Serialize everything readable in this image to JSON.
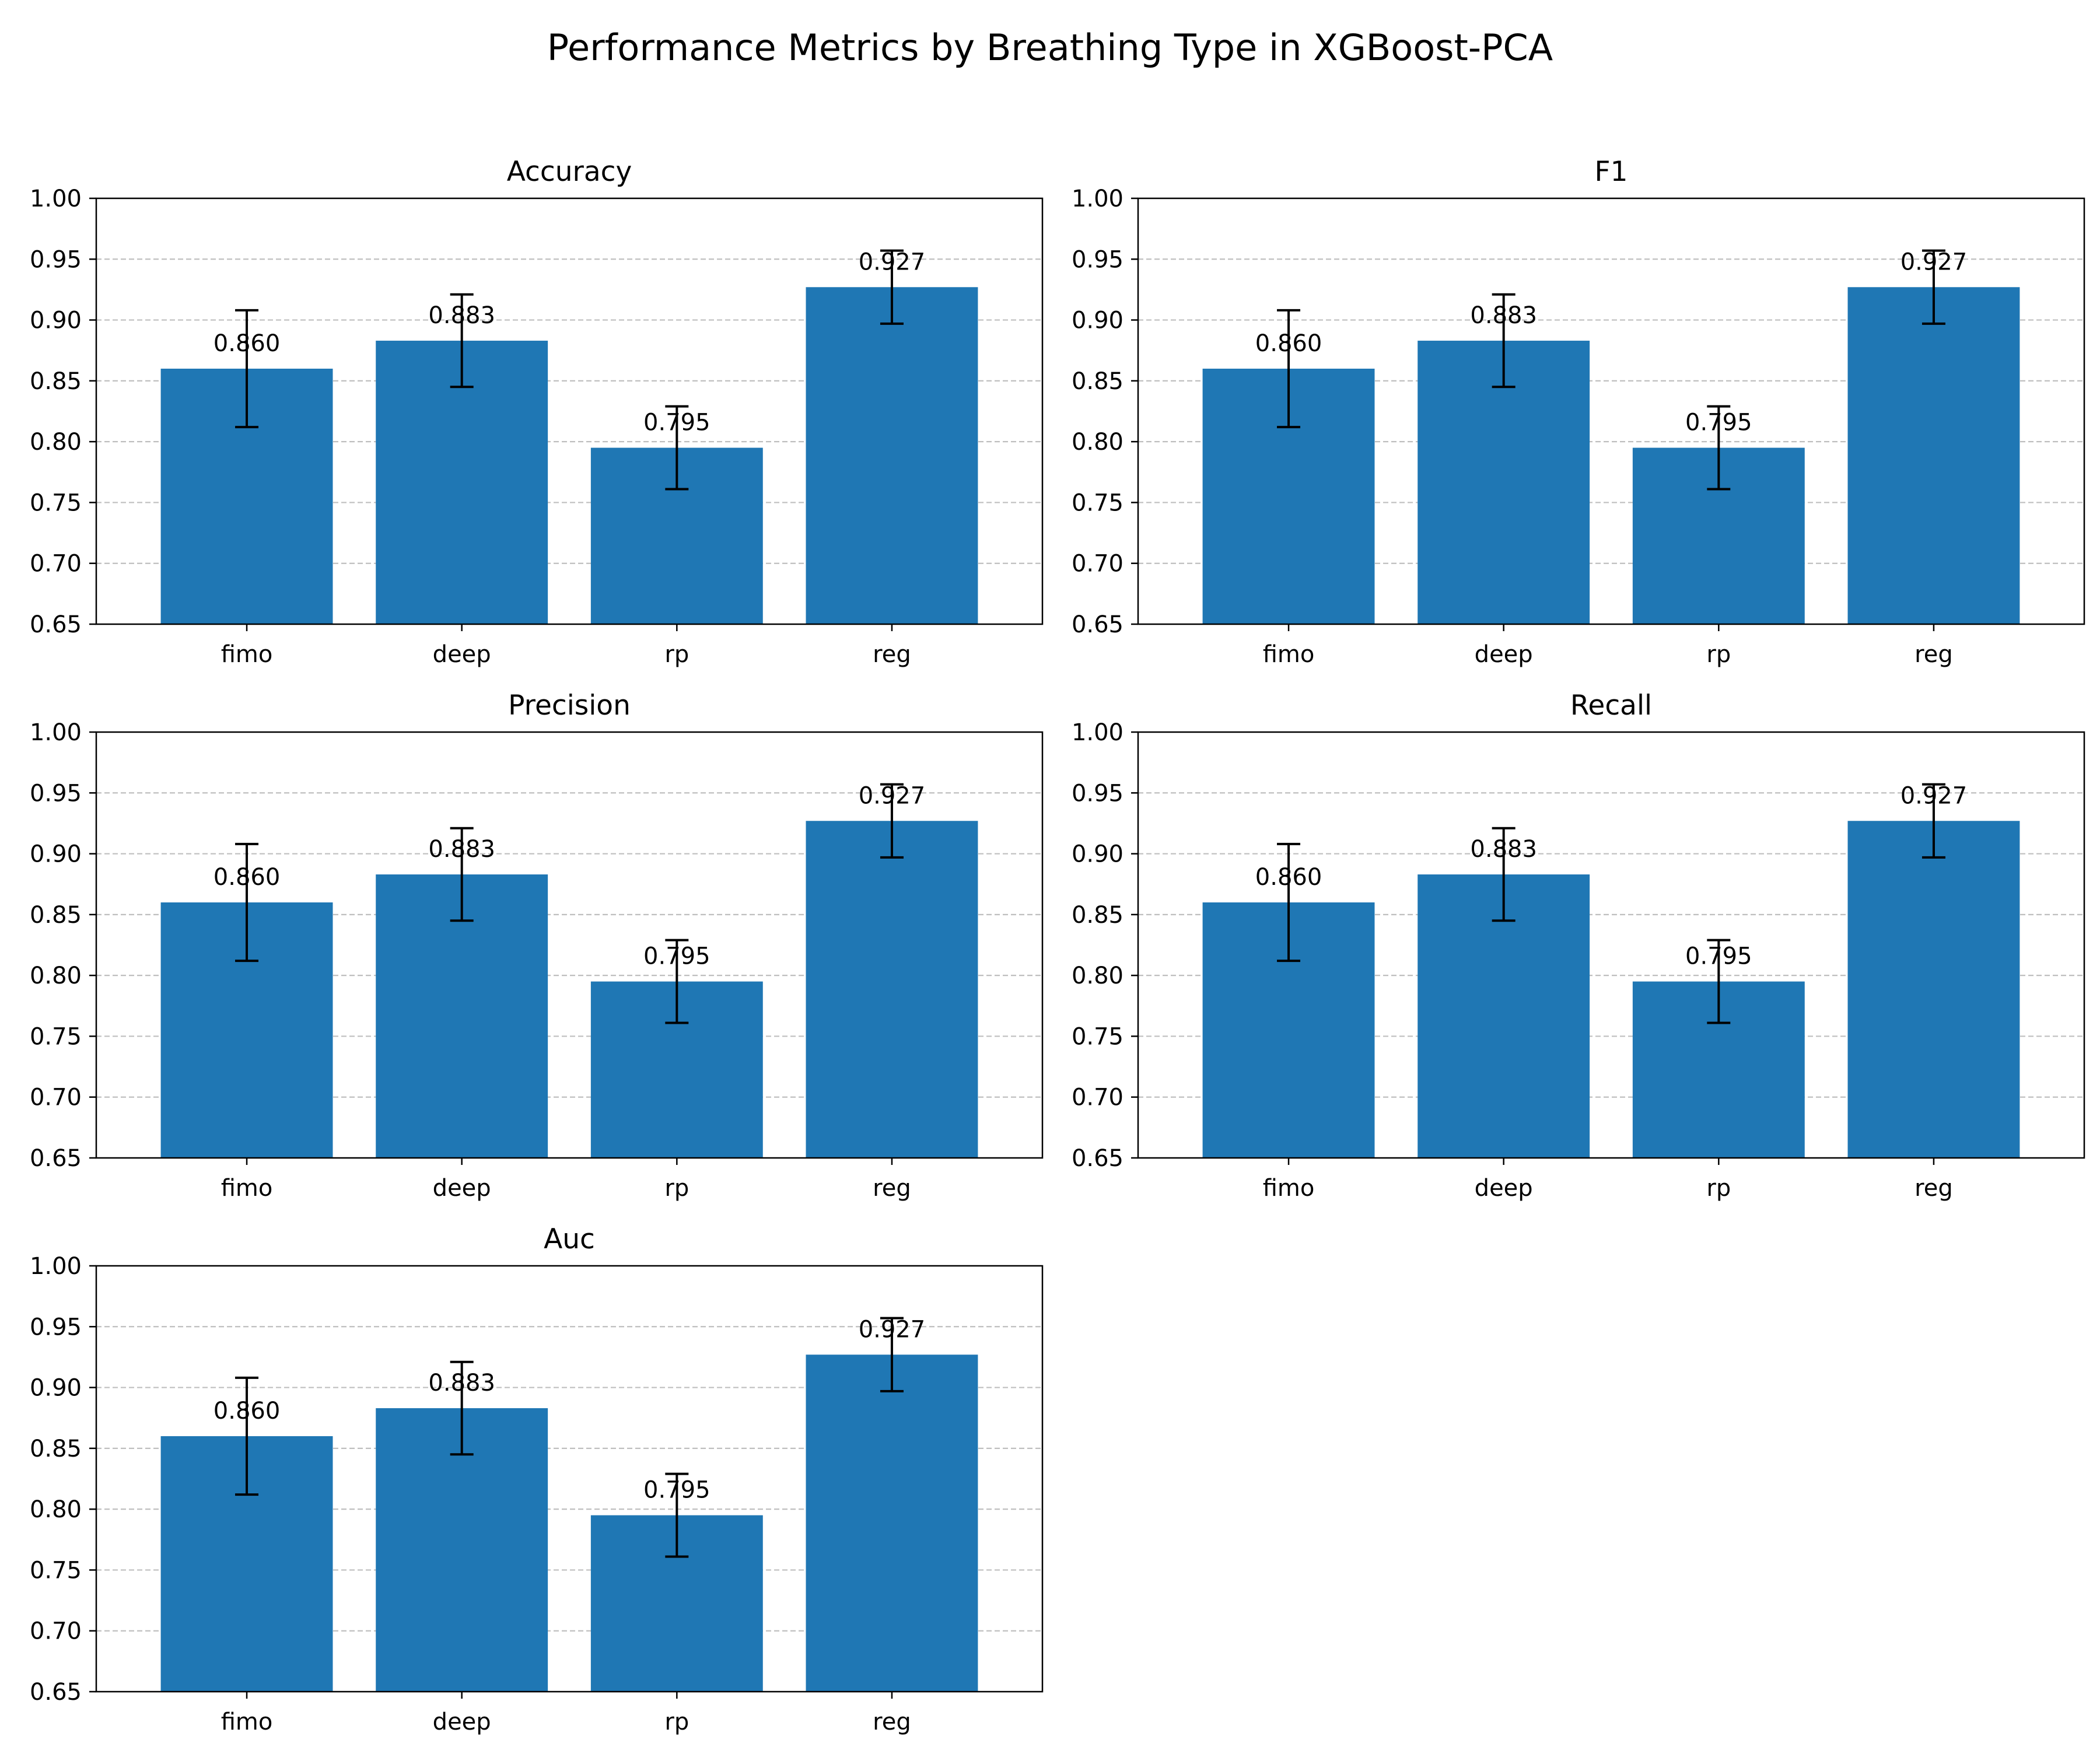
{
  "figure_title": "Performance Metrics by Breathing Type in XGBoost-PCA",
  "chart_data": [
    {
      "type": "bar",
      "title": "Accuracy",
      "categories": [
        "fimo",
        "deep",
        "rp",
        "reg"
      ],
      "values": [
        0.86,
        0.883,
        0.795,
        0.927
      ],
      "errors": [
        0.048,
        0.038,
        0.034,
        0.03
      ],
      "value_labels": [
        "0.860",
        "0.883",
        "0.795",
        "0.927"
      ],
      "ylim": [
        0.65,
        1.0
      ],
      "yticks": [
        "0.65",
        "0.70",
        "0.75",
        "0.80",
        "0.85",
        "0.90",
        "0.95",
        "1.00"
      ],
      "grid": "y-dashed"
    },
    {
      "type": "bar",
      "title": "F1",
      "categories": [
        "fimo",
        "deep",
        "rp",
        "reg"
      ],
      "values": [
        0.86,
        0.883,
        0.795,
        0.927
      ],
      "errors": [
        0.048,
        0.038,
        0.034,
        0.03
      ],
      "value_labels": [
        "0.860",
        "0.883",
        "0.795",
        "0.927"
      ],
      "ylim": [
        0.65,
        1.0
      ],
      "yticks": [
        "0.65",
        "0.70",
        "0.75",
        "0.80",
        "0.85",
        "0.90",
        "0.95",
        "1.00"
      ],
      "grid": "y-dashed"
    },
    {
      "type": "bar",
      "title": "Precision",
      "categories": [
        "fimo",
        "deep",
        "rp",
        "reg"
      ],
      "values": [
        0.86,
        0.883,
        0.795,
        0.927
      ],
      "errors": [
        0.048,
        0.038,
        0.034,
        0.03
      ],
      "value_labels": [
        "0.860",
        "0.883",
        "0.795",
        "0.927"
      ],
      "ylim": [
        0.65,
        1.0
      ],
      "yticks": [
        "0.65",
        "0.70",
        "0.75",
        "0.80",
        "0.85",
        "0.90",
        "0.95",
        "1.00"
      ],
      "grid": "y-dashed"
    },
    {
      "type": "bar",
      "title": "Recall",
      "categories": [
        "fimo",
        "deep",
        "rp",
        "reg"
      ],
      "values": [
        0.86,
        0.883,
        0.795,
        0.927
      ],
      "errors": [
        0.048,
        0.038,
        0.034,
        0.03
      ],
      "value_labels": [
        "0.860",
        "0.883",
        "0.795",
        "0.927"
      ],
      "ylim": [
        0.65,
        1.0
      ],
      "yticks": [
        "0.65",
        "0.70",
        "0.75",
        "0.80",
        "0.85",
        "0.90",
        "0.95",
        "1.00"
      ],
      "grid": "y-dashed"
    },
    {
      "type": "bar",
      "title": "Auc",
      "categories": [
        "fimo",
        "deep",
        "rp",
        "reg"
      ],
      "values": [
        0.86,
        0.883,
        0.795,
        0.927
      ],
      "errors": [
        0.048,
        0.038,
        0.034,
        0.03
      ],
      "value_labels": [
        "0.860",
        "0.883",
        "0.795",
        "0.927"
      ],
      "ylim": [
        0.65,
        1.0
      ],
      "yticks": [
        "0.65",
        "0.70",
        "0.75",
        "0.80",
        "0.85",
        "0.90",
        "0.95",
        "1.00"
      ],
      "grid": "y-dashed"
    }
  ],
  "colors": {
    "bar": "#1f77b4",
    "error_bar": "#000000",
    "grid": "#b0b0b0"
  }
}
